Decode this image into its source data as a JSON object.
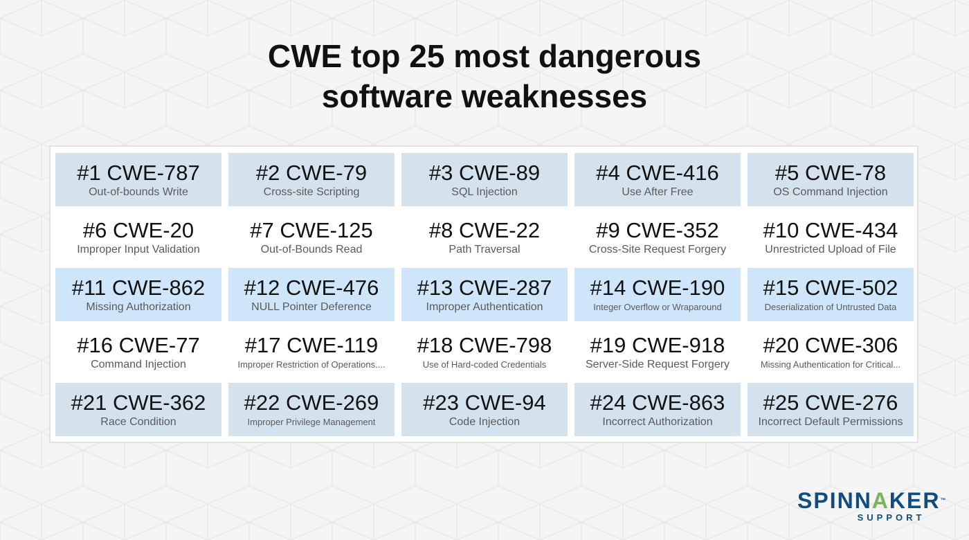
{
  "title": {
    "line1": "CWE top 25 most dangerous",
    "line2": "software weaknesses"
  },
  "weaknesses": [
    {
      "code": "#1 CWE-787",
      "name": "Out-of-bounds Write"
    },
    {
      "code": "#2 CWE-79",
      "name": "Cross-site Scripting"
    },
    {
      "code": "#3 CWE-89",
      "name": "SQL Injection"
    },
    {
      "code": "#4 CWE-416",
      "name": "Use After Free"
    },
    {
      "code": "#5 CWE-78",
      "name": "OS Command Injection"
    },
    {
      "code": "#6 CWE-20",
      "name": "Improper Input Validation"
    },
    {
      "code": "#7 CWE-125",
      "name": "Out-of-Bounds Read"
    },
    {
      "code": "#8 CWE-22",
      "name": "Path Traversal"
    },
    {
      "code": "#9 CWE-352",
      "name": "Cross-Site Request Forgery"
    },
    {
      "code": "#10 CWE-434",
      "name": "Unrestricted Upload of File"
    },
    {
      "code": "#11 CWE-862",
      "name": "Missing Authorization"
    },
    {
      "code": "#12 CWE-476",
      "name": "NULL Pointer Deference"
    },
    {
      "code": "#13 CWE-287",
      "name": "Improper Authentication"
    },
    {
      "code": "#14 CWE-190",
      "name": "Integer Overflow or Wraparound"
    },
    {
      "code": "#15 CWE-502",
      "name": "Deserialization of Untrusted Data"
    },
    {
      "code": "#16 CWE-77",
      "name": "Command Injection"
    },
    {
      "code": "#17 CWE-119",
      "name": "Improper Restriction of Operations...."
    },
    {
      "code": "#18 CWE-798",
      "name": "Use of Hard-coded Credentials"
    },
    {
      "code": "#19 CWE-918",
      "name": "Server-Side Request Forgery"
    },
    {
      "code": "#20   CWE-306",
      "name": "Missing Authentication for Critical..."
    },
    {
      "code": "#21 CWE-362",
      "name": "Race Condition"
    },
    {
      "code": "#22 CWE-269",
      "name": "Improper Privilege Management"
    },
    {
      "code": "#23 CWE-94",
      "name": "Code Injection"
    },
    {
      "code": "#24 CWE-863",
      "name": "Incorrect Authorization"
    },
    {
      "code": "#25 CWE-276",
      "name": "Incorrect Default Permissions"
    }
  ],
  "logo": {
    "word_part1": "SPINN",
    "word_accent": "A",
    "word_part2": "KER",
    "tm": "™",
    "sub": "SUPPORT"
  },
  "colors": {
    "row_blue": "#d4e2ee",
    "row_light_blue": "#cfe6fa",
    "brand_blue": "#0f4c81",
    "brand_green": "#7ab55c"
  }
}
